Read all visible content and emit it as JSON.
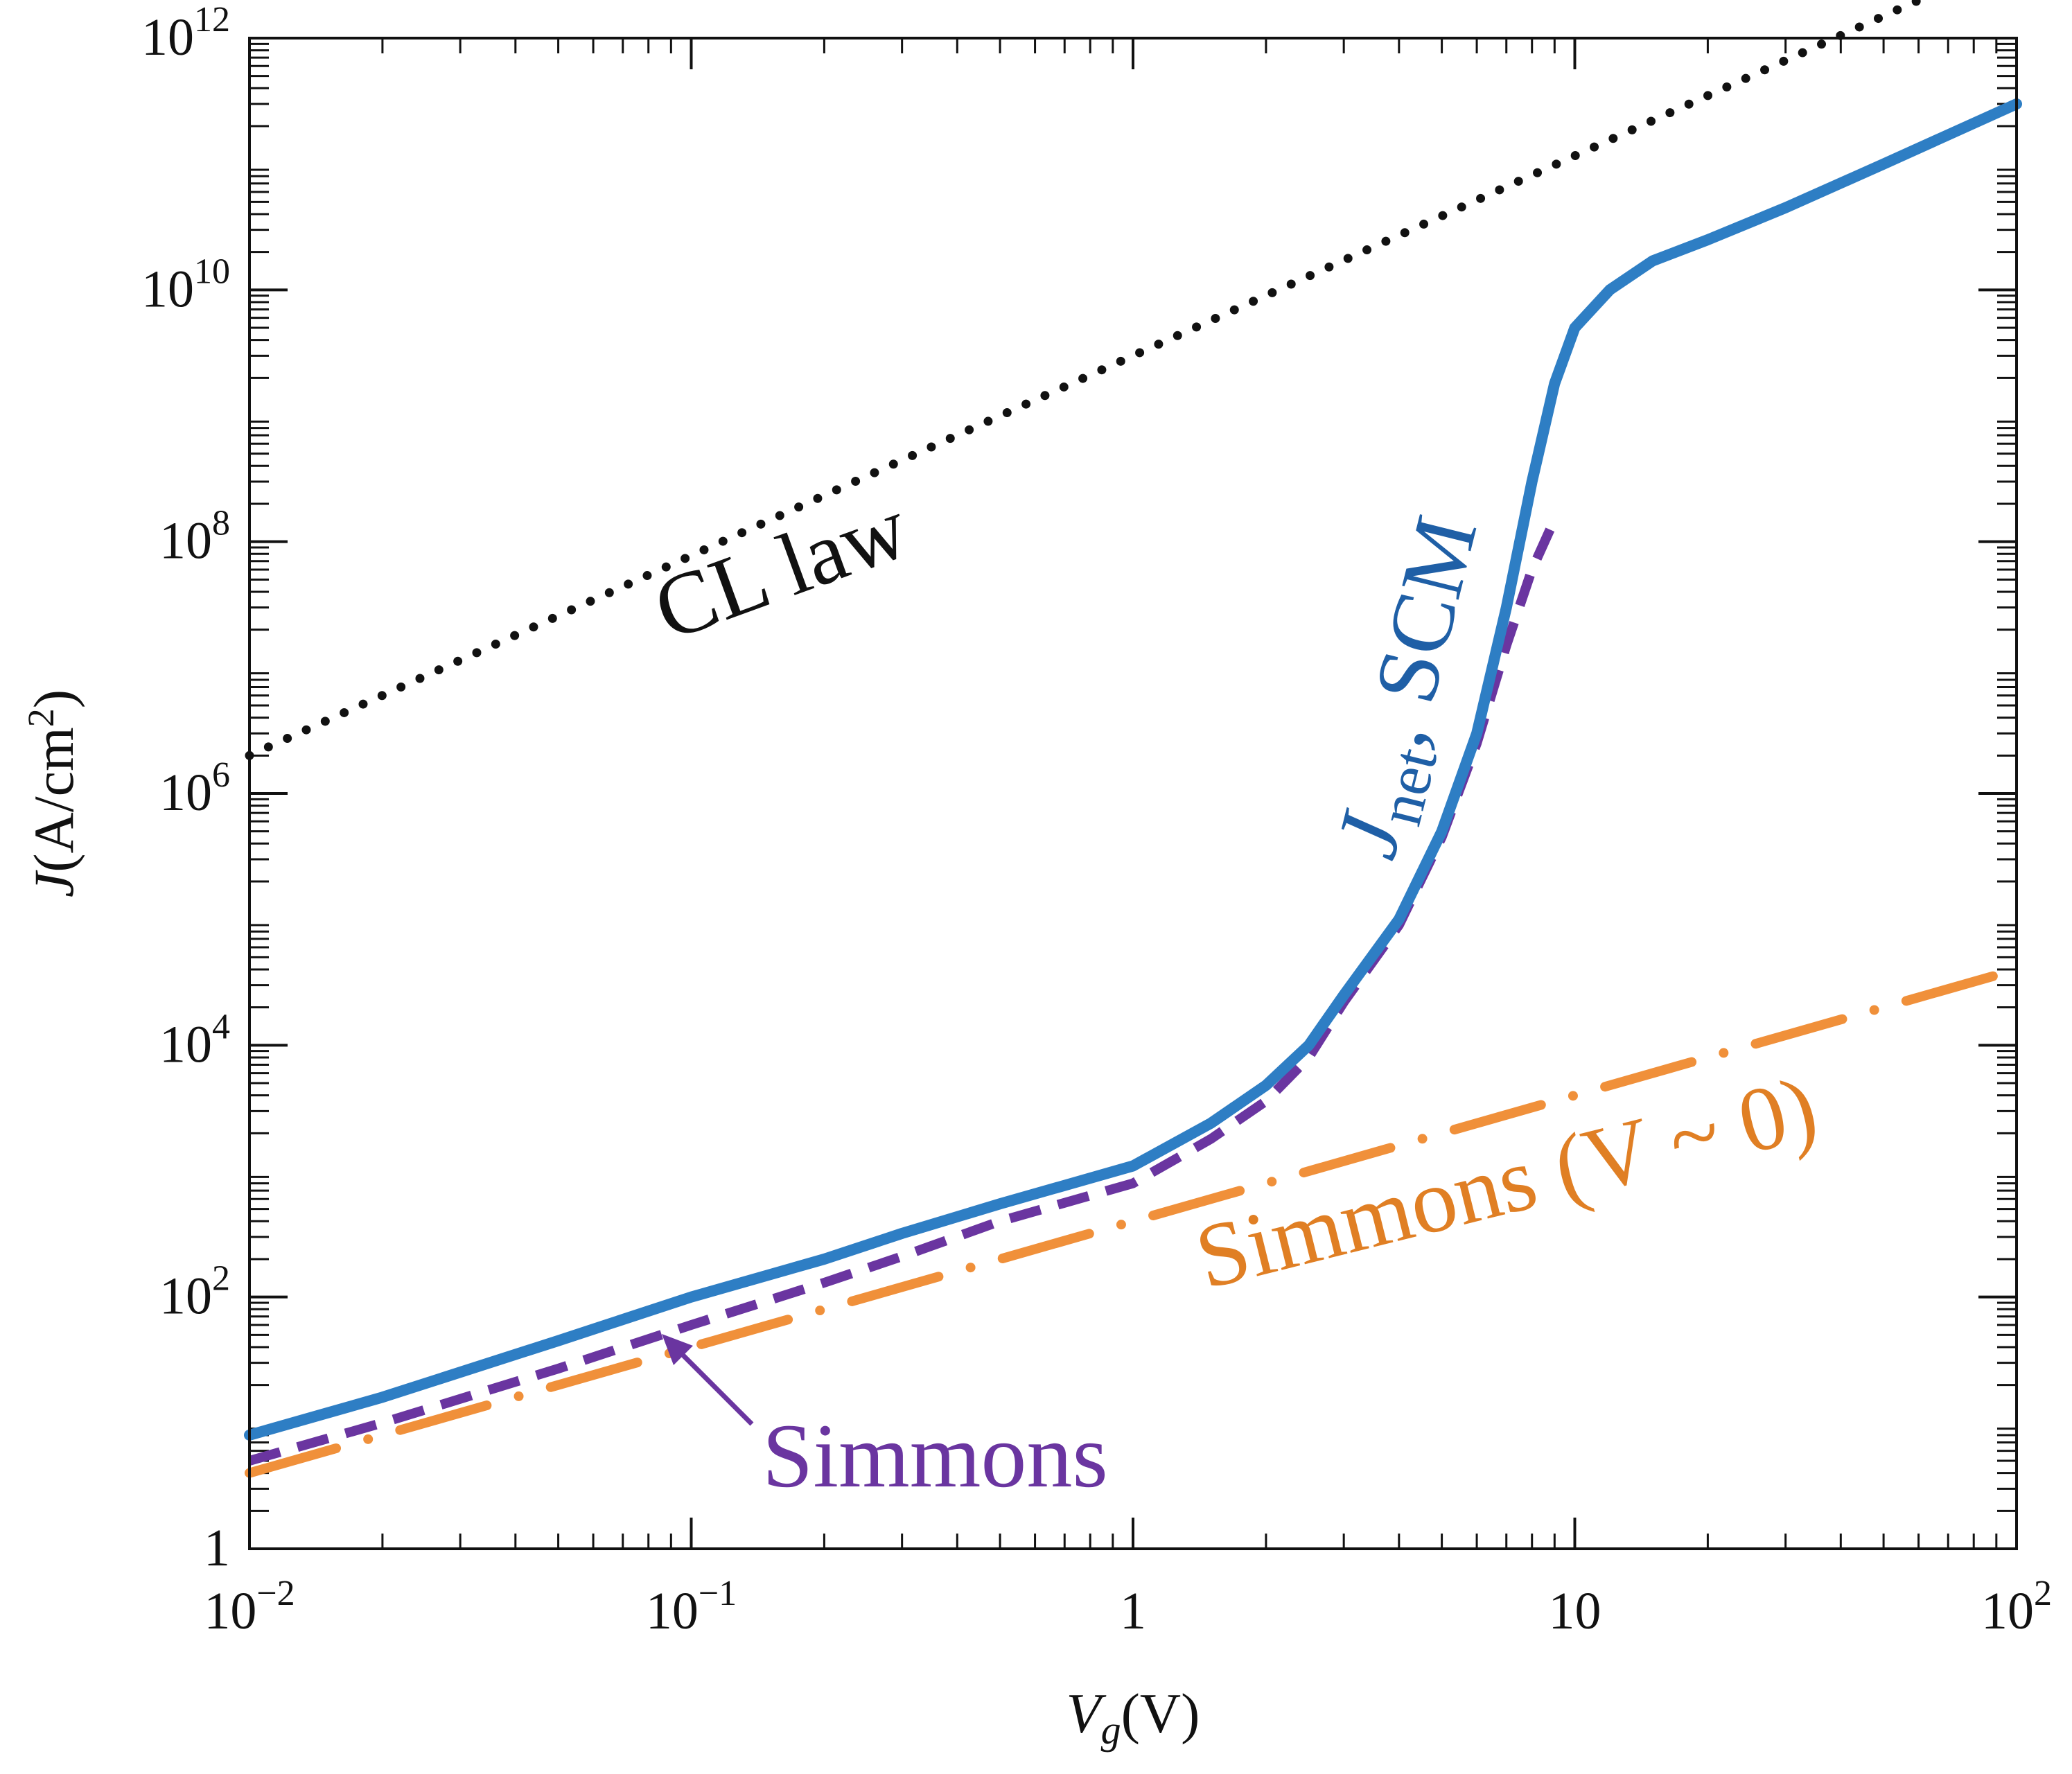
{
  "chart_data": {
    "type": "line",
    "xscale": "log",
    "yscale": "log",
    "xlim": [
      0.01,
      100
    ],
    "ylim": [
      1,
      1000000000000
    ],
    "xticks": [
      {
        "value": 0.01,
        "base": "10",
        "exp": "−2"
      },
      {
        "value": 0.1,
        "base": "10",
        "exp": "−1"
      },
      {
        "value": 1,
        "base": "1",
        "exp": ""
      },
      {
        "value": 10,
        "base": "10",
        "exp": ""
      },
      {
        "value": 100,
        "base": "10",
        "exp": "2"
      }
    ],
    "yticks": [
      {
        "value": 1,
        "base": "1",
        "exp": ""
      },
      {
        "value": 100,
        "base": "10",
        "exp": "2"
      },
      {
        "value": 10000,
        "base": "10",
        "exp": "4"
      },
      {
        "value": 1000000,
        "base": "10",
        "exp": "6"
      },
      {
        "value": 100000000,
        "base": "10",
        "exp": "8"
      },
      {
        "value": 10000000000,
        "base": "10",
        "exp": "10"
      },
      {
        "value": 1000000000000,
        "base": "10",
        "exp": "12"
      }
    ],
    "xlabel": {
      "symbol": "V",
      "sub": "g",
      "unit": "(V)"
    },
    "ylabel": {
      "symbol": "J",
      "unit_pre": "(A/cm",
      "unit_sup": "2",
      "unit_post": ")"
    },
    "series": [
      {
        "name": "CL law",
        "color": "#111111",
        "style": "dotted",
        "x": [
          0.01,
          100
        ],
        "y": [
          2000000,
          4500000000000
        ]
      },
      {
        "name": "J_net, SCM",
        "color": "#2e7ec4",
        "style": "solid",
        "x": [
          0.01,
          0.02,
          0.05,
          0.1,
          0.2,
          0.3,
          0.5,
          1,
          1.5,
          2,
          2.5,
          3,
          4,
          5,
          6,
          7,
          8,
          9,
          10,
          12,
          15,
          20,
          30,
          50,
          100
        ],
        "y": [
          8,
          16,
          45,
          100,
          200,
          320,
          550,
          1100,
          2400,
          4800,
          10000,
          25000,
          100000,
          500000,
          3000000,
          30000000,
          300000000,
          1800000000,
          5000000000,
          10000000000,
          17000000000,
          25000000000,
          45000000000,
          100000000000,
          300000000000
        ]
      },
      {
        "name": "Simmons",
        "color": "#6a35a0",
        "style": "dashed",
        "x": [
          0.01,
          0.02,
          0.05,
          0.1,
          0.2,
          0.3,
          0.5,
          1,
          1.5,
          2,
          2.5,
          3,
          4,
          5,
          6,
          7,
          8,
          9
        ],
        "y": [
          5,
          10,
          27,
          60,
          130,
          210,
          400,
          800,
          1800,
          3600,
          8000,
          22000,
          90000,
          450000,
          2500000,
          15000000,
          60000000,
          150000000
        ]
      },
      {
        "name": "Simmons (V ~ 0)",
        "color": "#f0903a",
        "style": "dashdot",
        "x": [
          0.01,
          0.1,
          1,
          10,
          100
        ],
        "y": [
          4,
          40,
          400,
          4000,
          40000
        ]
      }
    ],
    "annotations": {
      "cl_law": "CL law",
      "jnet_symbol": "J",
      "jnet_sub": "net",
      "jnet_rest": ", SCM",
      "simmons": "Simmons",
      "simmons_v0": "Simmons (V ~ 0)"
    }
  }
}
